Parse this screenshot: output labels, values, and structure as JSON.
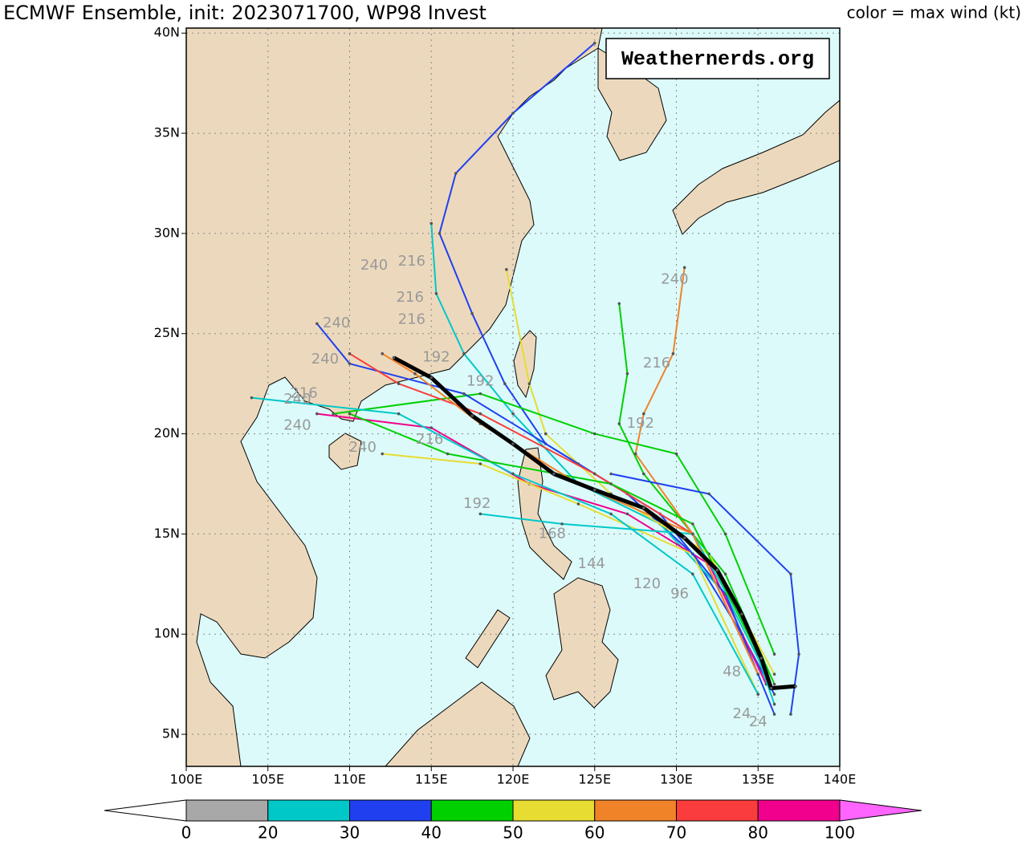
{
  "map": {
    "title": "ECMWF Ensemble, init: 2023071700, WP98 Invest",
    "legend_title": "color = max wind (kt)",
    "attribution": "Weathernerds.org",
    "xlim": [
      100,
      140
    ],
    "ylim": [
      3.4,
      40.25
    ],
    "xticks": [
      {
        "value": 100,
        "label": "100E"
      },
      {
        "value": 105,
        "label": "105E"
      },
      {
        "value": 110,
        "label": "110E"
      },
      {
        "value": 115,
        "label": "115E"
      },
      {
        "value": 120,
        "label": "120E"
      },
      {
        "value": 125,
        "label": "125E"
      },
      {
        "value": 130,
        "label": "130E"
      },
      {
        "value": 135,
        "label": "135E"
      },
      {
        "value": 140,
        "label": "140E"
      }
    ],
    "yticks": [
      {
        "value": 5,
        "label": "5N"
      },
      {
        "value": 10,
        "label": "10N"
      },
      {
        "value": 15,
        "label": "15N"
      },
      {
        "value": 20,
        "label": "20N"
      },
      {
        "value": 25,
        "label": "25N"
      },
      {
        "value": 30,
        "label": "30N"
      },
      {
        "value": 35,
        "label": "35N"
      },
      {
        "value": 40,
        "label": "40N"
      }
    ],
    "colorbar": {
      "bounds": [
        0,
        20,
        30,
        40,
        50,
        60,
        70,
        80,
        100
      ],
      "colors": [
        "#a8a8a8",
        "#00c8c8",
        "#2040f0",
        "#00d000",
        "#e6dc32",
        "#f08228",
        "#fa3c3c",
        "#f0008c"
      ],
      "over_color": "#ff64ff",
      "under_color": "#ffffff"
    },
    "mean_track": {
      "color": "#000000",
      "lon": [
        137.3,
        135.8,
        135.2,
        134,
        132.5,
        130.5,
        128,
        125,
        122.5,
        120,
        117.5,
        115,
        112.7
      ],
      "lat": [
        7.4,
        7.3,
        8.8,
        11,
        13.2,
        14.8,
        16.3,
        17.2,
        18,
        19.5,
        20.9,
        22.8,
        23.8
      ]
    },
    "tracks": [
      {
        "color": "#2040f0",
        "lon": [
          136,
          134,
          131,
          127,
          122,
          119.5,
          117.5,
          115.5,
          116.5,
          120,
          125
        ],
        "lat": [
          7,
          10,
          14,
          17,
          19.5,
          22.5,
          26,
          30,
          33,
          36,
          39.5
        ]
      },
      {
        "color": "#00c8c8",
        "lon": [
          135.5,
          133,
          129,
          124,
          120,
          117,
          115.3,
          115
        ],
        "lat": [
          8,
          12,
          15.5,
          17.5,
          21,
          24,
          27,
          30.5
        ]
      },
      {
        "color": "#00d000",
        "lon": [
          136,
          133,
          128,
          126.5,
          127,
          126.5
        ],
        "lat": [
          7.5,
          13,
          18,
          20.5,
          23,
          26.5
        ]
      },
      {
        "color": "#f08228",
        "lon": [
          135,
          131,
          127.5,
          128,
          129.8,
          130.5
        ],
        "lat": [
          8,
          15,
          19,
          21,
          24,
          28.3
        ]
      },
      {
        "color": "#f0008c",
        "lon": [
          135.5,
          132,
          127,
          121,
          115,
          108
        ],
        "lat": [
          7.5,
          13.5,
          16,
          17.5,
          20.3,
          21
        ]
      },
      {
        "color": "#e6dc32",
        "lon": [
          135,
          131,
          124,
          118,
          112
        ],
        "lat": [
          7,
          14,
          16.5,
          18.5,
          19
        ]
      },
      {
        "color": "#e6dc32",
        "lon": [
          136,
          132,
          126,
          122,
          121,
          119.6
        ],
        "lat": [
          8,
          14,
          17,
          20,
          22.5,
          28.2
        ]
      },
      {
        "color": "#00d000",
        "lon": [
          136,
          133,
          130,
          125,
          118,
          109
        ],
        "lat": [
          9,
          15,
          19,
          20,
          22,
          21
        ]
      },
      {
        "color": "#00c8c8",
        "lon": [
          135,
          131,
          126,
          120,
          113,
          104
        ],
        "lat": [
          7,
          13,
          16,
          18,
          21,
          21.8
        ]
      },
      {
        "color": "#2040f0",
        "lon": [
          136,
          133,
          129,
          124,
          117,
          110,
          108
        ],
        "lat": [
          6,
          12,
          16,
          18.5,
          22,
          23.5,
          25.5
        ]
      },
      {
        "color": "#fa3c3c",
        "lon": [
          135,
          131,
          125,
          118,
          113,
          110
        ],
        "lat": [
          8,
          15,
          18,
          21,
          22.5,
          24
        ]
      },
      {
        "color": "#00c8c8",
        "lon": [
          136,
          134.5,
          131,
          123,
          118
        ],
        "lat": [
          6.5,
          10,
          15,
          15.5,
          16
        ]
      },
      {
        "color": "#2040f0",
        "lon": [
          137,
          137.5,
          137,
          132,
          126
        ],
        "lat": [
          6,
          9,
          13,
          17,
          18
        ]
      },
      {
        "color": "#00d000",
        "lon": [
          135,
          131,
          126,
          116,
          110
        ],
        "lat": [
          9,
          15.5,
          17.5,
          19,
          21
        ]
      },
      {
        "color": "#f08228",
        "lon": [
          135,
          131,
          124,
          118,
          114,
          112
        ],
        "lat": [
          8,
          15,
          17.5,
          20.5,
          23,
          24
        ]
      }
    ],
    "hour_labels": [
      "240",
      "240",
      "240",
      "240",
      "240",
      "240",
      "240",
      "216",
      "216",
      "216",
      "216",
      "216",
      "216",
      "192",
      "192",
      "192",
      "192",
      "168",
      "144",
      "120",
      "96",
      "48",
      "24",
      "24"
    ]
  }
}
